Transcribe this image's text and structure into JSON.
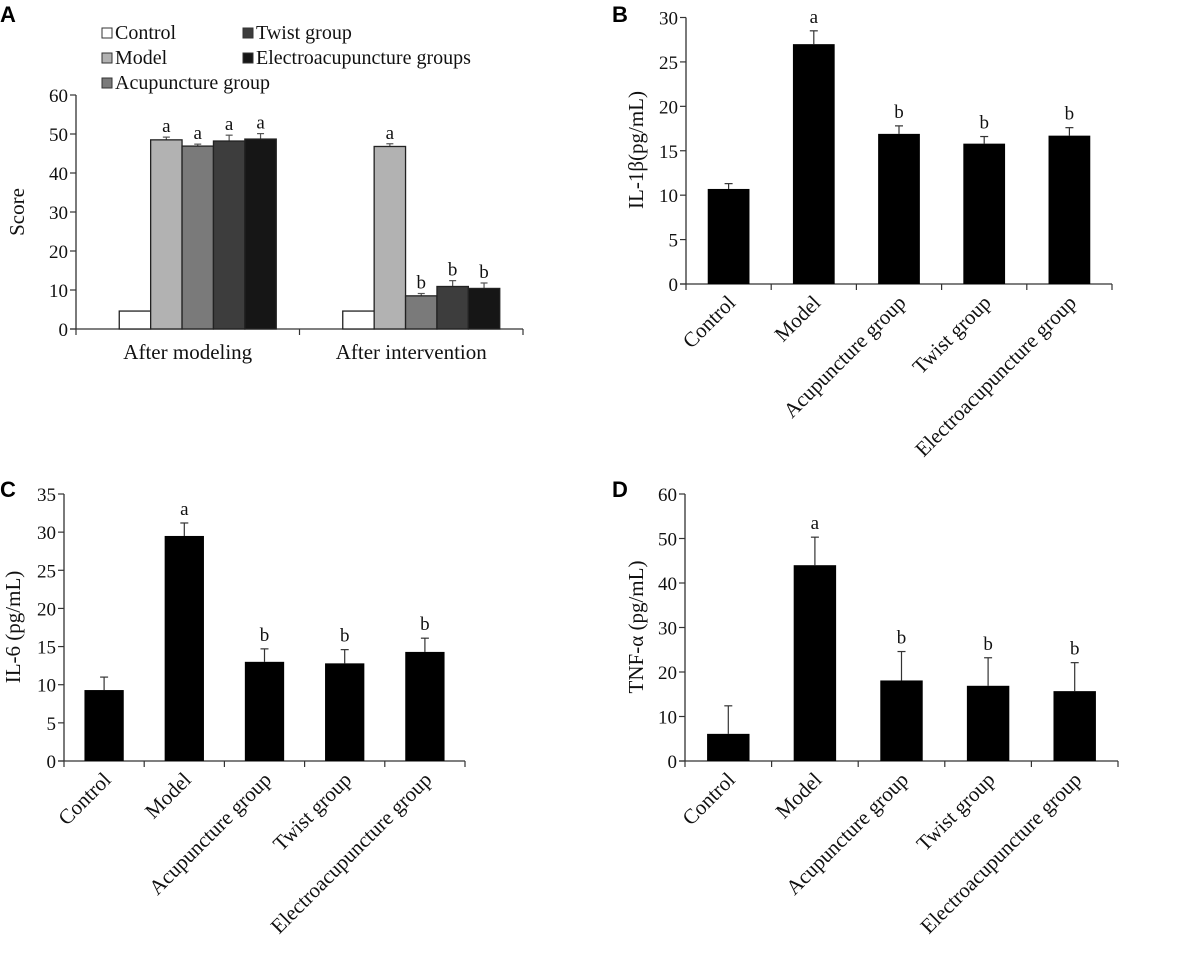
{
  "figure": {
    "panels": [
      "A",
      "B",
      "C",
      "D"
    ]
  },
  "chart_data": [
    {
      "panel": "A",
      "type": "bar",
      "title": "",
      "xlabel": "",
      "ylabel": "Score",
      "ylim": [
        0,
        60
      ],
      "yticks": [
        0,
        10,
        20,
        30,
        40,
        50,
        60
      ],
      "grid": false,
      "legend_placement": "top",
      "categories": [
        "After modeling",
        "After intervention"
      ],
      "series": [
        {
          "name": "Control",
          "color": "#ffffff",
          "values": [
            4.6,
            4.6
          ],
          "errors": [
            0,
            0
          ],
          "sig": [
            "",
            ""
          ]
        },
        {
          "name": "Model",
          "color": "#b2b2b2",
          "values": [
            48.5,
            46.8
          ],
          "errors": [
            0.7,
            0.7
          ],
          "sig": [
            "a",
            "a"
          ]
        },
        {
          "name": "Acupuncture group",
          "color": "#7a7a7a",
          "values": [
            46.9,
            8.5
          ],
          "errors": [
            0.5,
            0.6
          ],
          "sig": [
            "a",
            "b"
          ]
        },
        {
          "name": "Twist group",
          "color": "#3d3d3d",
          "values": [
            48.2,
            10.9
          ],
          "errors": [
            1.5,
            1.5
          ],
          "sig": [
            "a",
            "b"
          ]
        },
        {
          "name": "Electroacupuncture groups",
          "color": "#161616",
          "values": [
            48.7,
            10.4
          ],
          "errors": [
            1.4,
            1.4
          ],
          "sig": [
            "a",
            "b"
          ]
        }
      ]
    },
    {
      "panel": "B",
      "type": "bar",
      "title": "",
      "xlabel": "",
      "ylabel": "IL-1β(pg/mL)",
      "ylim": [
        0,
        30
      ],
      "yticks": [
        0,
        5,
        10,
        15,
        20,
        25,
        30
      ],
      "grid": false,
      "categories": [
        "Control",
        "Model",
        "Acupuncture group",
        "Twist group",
        "Electroacupuncture group"
      ],
      "values": [
        10.7,
        27.0,
        16.9,
        15.8,
        16.7
      ],
      "errors": [
        0.6,
        1.5,
        0.9,
        0.8,
        0.9
      ],
      "sig": [
        "",
        "a",
        "b",
        "b",
        "b"
      ],
      "color": "#000000"
    },
    {
      "panel": "C",
      "type": "bar",
      "title": "",
      "xlabel": "",
      "ylabel": "IL-6 (pg/mL)",
      "ylim": [
        0,
        35
      ],
      "yticks": [
        0,
        5,
        10,
        15,
        20,
        25,
        30,
        35
      ],
      "grid": false,
      "categories": [
        "Control",
        "Model",
        "Acupuncture group",
        "Twist group",
        "Electroacupuncture group"
      ],
      "values": [
        9.3,
        29.5,
        13.0,
        12.8,
        14.3
      ],
      "errors": [
        1.7,
        1.7,
        1.7,
        1.8,
        1.8
      ],
      "sig": [
        "",
        "a",
        "b",
        "b",
        "b"
      ],
      "color": "#000000"
    },
    {
      "panel": "D",
      "type": "bar",
      "title": "",
      "xlabel": "",
      "ylabel": "TNF-α (pg/mL)",
      "ylim": [
        0,
        60
      ],
      "yticks": [
        0,
        10,
        20,
        30,
        40,
        50,
        60
      ],
      "grid": false,
      "categories": [
        "Control",
        "Model",
        "Acupuncture group",
        "Twist group",
        "Electroacupuncture group"
      ],
      "values": [
        6.1,
        44.0,
        18.1,
        16.9,
        15.7
      ],
      "errors": [
        6.3,
        6.3,
        6.5,
        6.3,
        6.4
      ],
      "sig": [
        "",
        "a",
        "b",
        "b",
        "b"
      ],
      "color": "#000000"
    }
  ]
}
